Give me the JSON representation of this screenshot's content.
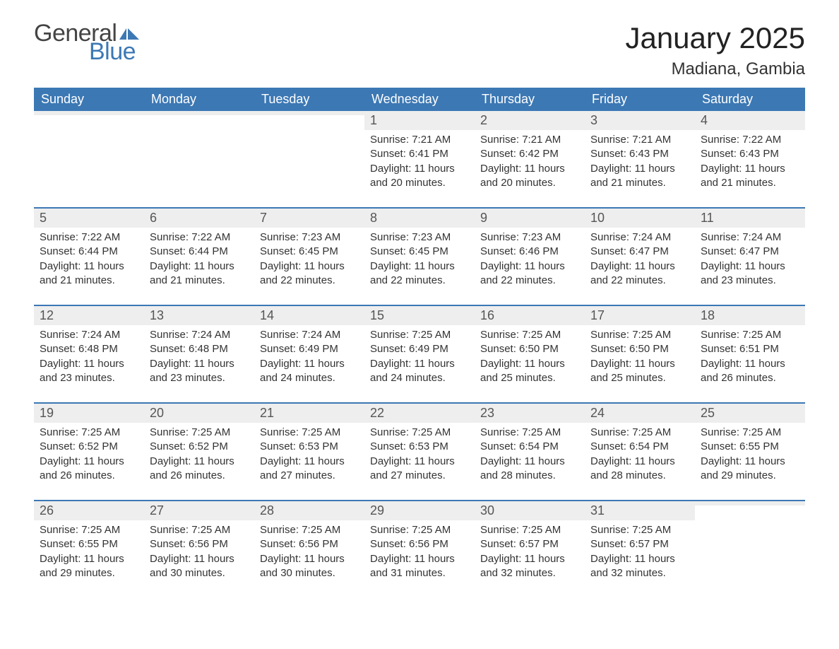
{
  "brand": {
    "word1": "General",
    "word2": "Blue",
    "word1_color": "#444444",
    "word2_color": "#3c78b4",
    "icon_color": "#3c78b4"
  },
  "title": {
    "month_year": "January 2025",
    "location": "Madiana, Gambia"
  },
  "styling": {
    "header_bg": "#3c78b4",
    "header_text": "#ffffff",
    "daynum_bg": "#eeeeee",
    "cell_border": "#3c78b4",
    "body_text": "#333333",
    "font_family": "Arial",
    "title_fontsize_pt": 32,
    "location_fontsize_pt": 18,
    "dayheader_fontsize_pt": 14,
    "daynum_fontsize_pt": 14,
    "daydata_fontsize_pt": 11
  },
  "day_headers": [
    "Sunday",
    "Monday",
    "Tuesday",
    "Wednesday",
    "Thursday",
    "Friday",
    "Saturday"
  ],
  "weeks": [
    [
      {
        "day": "",
        "text": ""
      },
      {
        "day": "",
        "text": ""
      },
      {
        "day": "",
        "text": ""
      },
      {
        "day": "1",
        "text": "Sunrise: 7:21 AM\nSunset: 6:41 PM\nDaylight: 11 hours and 20 minutes."
      },
      {
        "day": "2",
        "text": "Sunrise: 7:21 AM\nSunset: 6:42 PM\nDaylight: 11 hours and 20 minutes."
      },
      {
        "day": "3",
        "text": "Sunrise: 7:21 AM\nSunset: 6:43 PM\nDaylight: 11 hours and 21 minutes."
      },
      {
        "day": "4",
        "text": "Sunrise: 7:22 AM\nSunset: 6:43 PM\nDaylight: 11 hours and 21 minutes."
      }
    ],
    [
      {
        "day": "5",
        "text": "Sunrise: 7:22 AM\nSunset: 6:44 PM\nDaylight: 11 hours and 21 minutes."
      },
      {
        "day": "6",
        "text": "Sunrise: 7:22 AM\nSunset: 6:44 PM\nDaylight: 11 hours and 21 minutes."
      },
      {
        "day": "7",
        "text": "Sunrise: 7:23 AM\nSunset: 6:45 PM\nDaylight: 11 hours and 22 minutes."
      },
      {
        "day": "8",
        "text": "Sunrise: 7:23 AM\nSunset: 6:45 PM\nDaylight: 11 hours and 22 minutes."
      },
      {
        "day": "9",
        "text": "Sunrise: 7:23 AM\nSunset: 6:46 PM\nDaylight: 11 hours and 22 minutes."
      },
      {
        "day": "10",
        "text": "Sunrise: 7:24 AM\nSunset: 6:47 PM\nDaylight: 11 hours and 22 minutes."
      },
      {
        "day": "11",
        "text": "Sunrise: 7:24 AM\nSunset: 6:47 PM\nDaylight: 11 hours and 23 minutes."
      }
    ],
    [
      {
        "day": "12",
        "text": "Sunrise: 7:24 AM\nSunset: 6:48 PM\nDaylight: 11 hours and 23 minutes."
      },
      {
        "day": "13",
        "text": "Sunrise: 7:24 AM\nSunset: 6:48 PM\nDaylight: 11 hours and 23 minutes."
      },
      {
        "day": "14",
        "text": "Sunrise: 7:24 AM\nSunset: 6:49 PM\nDaylight: 11 hours and 24 minutes."
      },
      {
        "day": "15",
        "text": "Sunrise: 7:25 AM\nSunset: 6:49 PM\nDaylight: 11 hours and 24 minutes."
      },
      {
        "day": "16",
        "text": "Sunrise: 7:25 AM\nSunset: 6:50 PM\nDaylight: 11 hours and 25 minutes."
      },
      {
        "day": "17",
        "text": "Sunrise: 7:25 AM\nSunset: 6:50 PM\nDaylight: 11 hours and 25 minutes."
      },
      {
        "day": "18",
        "text": "Sunrise: 7:25 AM\nSunset: 6:51 PM\nDaylight: 11 hours and 26 minutes."
      }
    ],
    [
      {
        "day": "19",
        "text": "Sunrise: 7:25 AM\nSunset: 6:52 PM\nDaylight: 11 hours and 26 minutes."
      },
      {
        "day": "20",
        "text": "Sunrise: 7:25 AM\nSunset: 6:52 PM\nDaylight: 11 hours and 26 minutes."
      },
      {
        "day": "21",
        "text": "Sunrise: 7:25 AM\nSunset: 6:53 PM\nDaylight: 11 hours and 27 minutes."
      },
      {
        "day": "22",
        "text": "Sunrise: 7:25 AM\nSunset: 6:53 PM\nDaylight: 11 hours and 27 minutes."
      },
      {
        "day": "23",
        "text": "Sunrise: 7:25 AM\nSunset: 6:54 PM\nDaylight: 11 hours and 28 minutes."
      },
      {
        "day": "24",
        "text": "Sunrise: 7:25 AM\nSunset: 6:54 PM\nDaylight: 11 hours and 28 minutes."
      },
      {
        "day": "25",
        "text": "Sunrise: 7:25 AM\nSunset: 6:55 PM\nDaylight: 11 hours and 29 minutes."
      }
    ],
    [
      {
        "day": "26",
        "text": "Sunrise: 7:25 AM\nSunset: 6:55 PM\nDaylight: 11 hours and 29 minutes."
      },
      {
        "day": "27",
        "text": "Sunrise: 7:25 AM\nSunset: 6:56 PM\nDaylight: 11 hours and 30 minutes."
      },
      {
        "day": "28",
        "text": "Sunrise: 7:25 AM\nSunset: 6:56 PM\nDaylight: 11 hours and 30 minutes."
      },
      {
        "day": "29",
        "text": "Sunrise: 7:25 AM\nSunset: 6:56 PM\nDaylight: 11 hours and 31 minutes."
      },
      {
        "day": "30",
        "text": "Sunrise: 7:25 AM\nSunset: 6:57 PM\nDaylight: 11 hours and 32 minutes."
      },
      {
        "day": "31",
        "text": "Sunrise: 7:25 AM\nSunset: 6:57 PM\nDaylight: 11 hours and 32 minutes."
      },
      {
        "day": "",
        "text": ""
      }
    ]
  ]
}
